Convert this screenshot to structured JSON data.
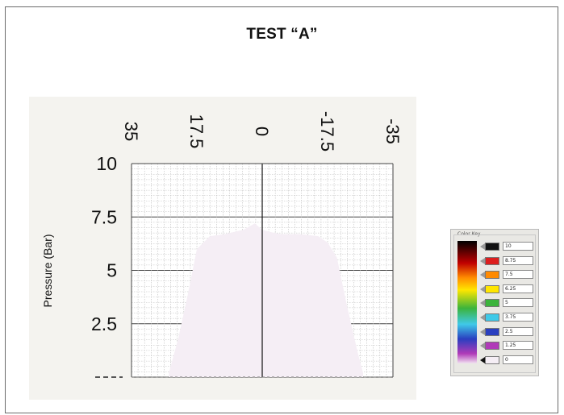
{
  "title": "TEST “A”",
  "chart_data": {
    "type": "area",
    "title": "TEST “A”",
    "ylabel": "Pressure (Bar)",
    "xlabel": "",
    "x_ticks": [
      "35",
      "17.5",
      "0",
      "-17.5",
      "-35"
    ],
    "y_ticks": [
      "10",
      "7.5",
      "5",
      "2.5"
    ],
    "xlim": [
      35,
      -35
    ],
    "ylim": [
      0,
      10
    ],
    "grid": true,
    "profile": {
      "x": [
        25.0,
        22.5,
        20.0,
        17.5,
        14.0,
        10.0,
        5.0,
        2.0,
        0.0,
        -2.0,
        -5.0,
        -10.0,
        -15.0,
        -17.5,
        -20.0,
        -22.5,
        -25.5,
        -27.0
      ],
      "y": [
        0.2,
        1.8,
        3.8,
        6.0,
        6.6,
        6.7,
        6.9,
        7.2,
        6.9,
        6.8,
        6.7,
        6.7,
        6.6,
        6.3,
        5.6,
        3.5,
        1.2,
        0.2
      ]
    },
    "colorbar": {
      "header": "Color Key",
      "levels": [
        {
          "label": "10",
          "color": "#111111"
        },
        {
          "label": "8.75",
          "color": "#dd1e1e"
        },
        {
          "label": "7.5",
          "color": "#ff8a00"
        },
        {
          "label": "6.25",
          "color": "#ffe600"
        },
        {
          "label": "5",
          "color": "#3cb43c"
        },
        {
          "label": "3.75",
          "color": "#3fc9e8"
        },
        {
          "label": "2.5",
          "color": "#2a3fc0"
        },
        {
          "label": "1.25",
          "color": "#b03ab8"
        },
        {
          "label": "0",
          "color": "#f5eef5"
        }
      ]
    }
  }
}
